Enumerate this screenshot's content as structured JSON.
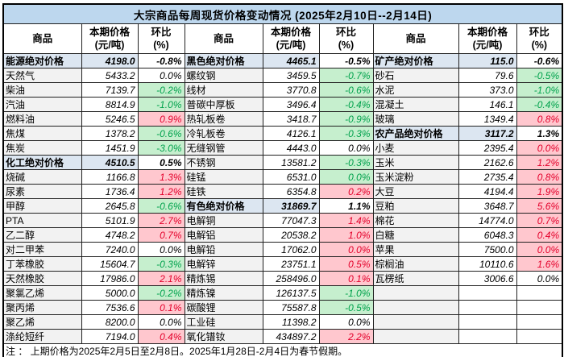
{
  "colors": {
    "title_bg": "#BDD7EE",
    "section_bg": "#DCE6F1",
    "name_bg": "#F2F2F2",
    "up_bg": "#FFC7CE",
    "up_text": "#E4002B",
    "down_bg": "#C6EFCE",
    "down_text": "#00A24C"
  },
  "chart_data": {
    "type": "table",
    "title": "大宗商品每周现货价格变动情况 (2025年2月10日--2月14日)",
    "footnote": "注 ： 上期价格为2025年2月5日至2月8日。2025年1月28日-2月4日为春节假期。",
    "column_headers": [
      "商品",
      "本期价格\n(元/吨)",
      "环比\n(%)",
      "商品",
      "本期价格\n(元/吨)",
      "环比\n(%)",
      "商品",
      "本期价格\n(元/吨)",
      "环比\n(%)"
    ],
    "groups": [
      [
        {
          "name": "能源绝对价格",
          "price": "4198.0",
          "pct": "-0.8%",
          "style": "section"
        },
        {
          "name": "天然气",
          "price": "5433.2",
          "pct": "0.0%",
          "style": "flat"
        },
        {
          "name": "柴油",
          "price": "7139.7",
          "pct": "-0.2%",
          "style": "down"
        },
        {
          "name": "汽油",
          "price": "8814.9",
          "pct": "-1.0%",
          "style": "down"
        },
        {
          "name": "燃料油",
          "price": "5246.5",
          "pct": "0.9%",
          "style": "up"
        },
        {
          "name": "焦煤",
          "price": "1378.2",
          "pct": "-0.6%",
          "style": "down"
        },
        {
          "name": "焦炭",
          "price": "1451.9",
          "pct": "-3.0%",
          "style": "down"
        },
        {
          "name": "化工绝对价格",
          "price": "4510.5",
          "pct": "0.5%",
          "style": "section"
        },
        {
          "name": "烧碱",
          "price": "1166.8",
          "pct": "1.3%",
          "style": "up"
        },
        {
          "name": "尿素",
          "price": "1736.4",
          "pct": "1.2%",
          "style": "up"
        },
        {
          "name": "甲醇",
          "price": "2645.8",
          "pct": "-0.6%",
          "style": "down"
        },
        {
          "name": "PTA",
          "price": "5101.9",
          "pct": "2.7%",
          "style": "up"
        },
        {
          "name": "乙二醇",
          "price": "4748.2",
          "pct": "0.7%",
          "style": "up"
        },
        {
          "name": "对二甲苯",
          "price": "7240.0",
          "pct": "0.0%",
          "style": "flat"
        },
        {
          "name": "丁苯橡胶",
          "price": "15604.7",
          "pct": "-0.3%",
          "style": "down"
        },
        {
          "name": "天然橡胶",
          "price": "17986.0",
          "pct": "2.1%",
          "style": "up"
        },
        {
          "name": "聚氯乙烯",
          "price": "5000.0",
          "pct": "-0.2%",
          "style": "down"
        },
        {
          "name": "聚丙烯",
          "price": "7536.6",
          "pct": "0.1%",
          "style": "up"
        },
        {
          "name": "聚乙烯",
          "price": "8200.0",
          "pct": "0.0%",
          "style": "flat"
        },
        {
          "name": "涤纶短纤",
          "price": "7194.0",
          "pct": "0.4%",
          "style": "up"
        }
      ],
      [
        {
          "name": "黑色绝对价格",
          "price": "4465.1",
          "pct": "-0.5%",
          "style": "section"
        },
        {
          "name": "螺纹钢",
          "price": "3459.5",
          "pct": "-0.7%",
          "style": "down"
        },
        {
          "name": "线材",
          "price": "3770.8",
          "pct": "-0.6%",
          "style": "down"
        },
        {
          "name": "普碳中厚板",
          "price": "3496.4",
          "pct": "-0.4%",
          "style": "down"
        },
        {
          "name": "热轧板卷",
          "price": "3418.7",
          "pct": "-0.9%",
          "style": "down"
        },
        {
          "name": "冷轧板卷",
          "price": "4126.1",
          "pct": "-0.3%",
          "style": "down"
        },
        {
          "name": "无缝钢管",
          "price": "4443.0",
          "pct": "0.0%",
          "style": "flat"
        },
        {
          "name": "不锈钢",
          "price": "13581.2",
          "pct": "-0.3%",
          "style": "down"
        },
        {
          "name": "硅锰",
          "price": "6531.0",
          "pct": "0.0%",
          "style": "down"
        },
        {
          "name": "硅铁",
          "price": "6354.8",
          "pct": "0.2%",
          "style": "up"
        },
        {
          "name": "有色绝对价格",
          "price": "31869.7",
          "pct": "1.1%",
          "style": "section"
        },
        {
          "name": "电解铜",
          "price": "77047.3",
          "pct": "1.4%",
          "style": "up"
        },
        {
          "name": "电解铝",
          "price": "20538.2",
          "pct": "1.0%",
          "style": "up"
        },
        {
          "name": "电解铅",
          "price": "17062.0",
          "pct": "0.0%",
          "style": "up"
        },
        {
          "name": "电解锌",
          "price": "23751.1",
          "pct": "0.5%",
          "style": "up"
        },
        {
          "name": "精炼锡",
          "price": "258496.0",
          "pct": "0.1%",
          "style": "up"
        },
        {
          "name": "精炼镍",
          "price": "126137.5",
          "pct": "-1.0%",
          "style": "down"
        },
        {
          "name": "碳酸锂",
          "price": "75587.8",
          "pct": "-0.5%",
          "style": "down"
        },
        {
          "name": "工业硅",
          "price": "11398.2",
          "pct": "0.0%",
          "style": "flat"
        },
        {
          "name": "氧化镨钕",
          "price": "434897.2",
          "pct": "2.2%",
          "style": "up"
        }
      ],
      [
        {
          "name": "矿产绝对价格",
          "price": "115.0",
          "pct": "-0.6%",
          "style": "section"
        },
        {
          "name": "砂石",
          "price": "79.6",
          "pct": "-0.5%",
          "style": "down"
        },
        {
          "name": "水泥",
          "price": "373.0",
          "pct": "-1.0%",
          "style": "down"
        },
        {
          "name": "混凝土",
          "price": "146.1",
          "pct": "-0.4%",
          "style": "down"
        },
        {
          "name": "玻璃",
          "price": "1349.4",
          "pct": "0.8%",
          "style": "up"
        },
        {
          "name": "农产品绝对价格",
          "price": "3117.2",
          "pct": "1.3%",
          "style": "section"
        },
        {
          "name": "小麦",
          "price": "2395.4",
          "pct": "0.0%",
          "style": "up"
        },
        {
          "name": "玉米",
          "price": "2162.6",
          "pct": "1.2%",
          "style": "up"
        },
        {
          "name": "玉米淀粉",
          "price": "2735.4",
          "pct": "0.8%",
          "style": "up"
        },
        {
          "name": "大豆",
          "price": "4194.4",
          "pct": "1.9%",
          "style": "up"
        },
        {
          "name": "豆粕",
          "price": "3648.7",
          "pct": "5.6%",
          "style": "up"
        },
        {
          "name": "棉花",
          "price": "14774.0",
          "pct": "0.7%",
          "style": "up"
        },
        {
          "name": "白糖",
          "price": "6048.3",
          "pct": "0.4%",
          "style": "up"
        },
        {
          "name": "苹果",
          "price": "7500.0",
          "pct": "0.0%",
          "style": "up"
        },
        {
          "name": "棕榈油",
          "price": "10110.6",
          "pct": "1.6%",
          "style": "up"
        },
        {
          "name": "瓦楞纸",
          "price": "3006.6",
          "pct": "0.0%",
          "style": "flat"
        },
        {
          "name": "",
          "price": "",
          "pct": "",
          "style": "empty"
        },
        {
          "name": "",
          "price": "",
          "pct": "",
          "style": "empty"
        },
        {
          "name": "",
          "price": "",
          "pct": "",
          "style": "empty"
        },
        {
          "name": "",
          "price": "",
          "pct": "",
          "style": "empty"
        }
      ]
    ]
  }
}
